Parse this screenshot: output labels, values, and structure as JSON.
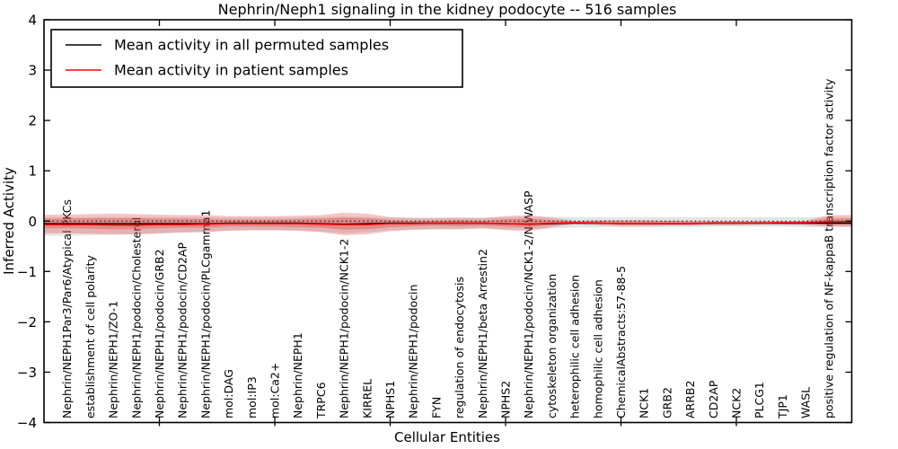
{
  "chart_data": {
    "type": "line",
    "title": "Nephrin/Neph1 signaling in the kidney podocyte -- 516 samples",
    "xlabel": "Cellular Entities",
    "ylabel": "Inferred Activity",
    "ylim": [
      -4,
      4
    ],
    "yticks": [
      -4,
      -3,
      -2,
      -1,
      0,
      1,
      2,
      3,
      4
    ],
    "xticks_major": [
      5,
      10,
      15,
      20,
      25,
      30
    ],
    "grid": false,
    "zero_reference_line": "dotted",
    "legend_position": "upper left",
    "categories": [
      "Nephrin/NEPH1Par3/Par6/Atypical PKCs",
      "establishment of cell polarity",
      "Nephrin/NEPH1/ZO-1",
      "Nephrin/NEPH1/podocin/Cholesterol",
      "Nephrin/NEPH1/podocin/GRB2",
      "Nephrin/NEPH1/podocin/CD2AP",
      "Nephrin/NEPH1/podocin/PLCgamma1",
      "mol:DAG",
      "mol:IP3",
      "mol:Ca2+",
      "Nephrin/NEPH1",
      "TRPC6",
      "Nephrin/NEPH1/podocin/NCK1-2",
      "KIRREL",
      "NPHS1",
      "Nephrin/NEPH1/podocin",
      "FYN",
      "regulation of endocytosis",
      "Nephrin/NEPH1/beta Arrestin2",
      "NPHS2",
      "Nephrin/NEPH1/podocin/NCK1-2/N-WASP",
      "cytoskeleton organization",
      "heterophilic cell adhesion",
      "homophilic cell adhesion",
      "ChemicalAbstracts:57-88-5",
      "NCK1",
      "GRB2",
      "ARRB2",
      "CD2AP",
      "NCK2",
      "PLCG1",
      "TJP1",
      "WASL",
      "positive regulation of NF-kappaB transcription factor activity"
    ],
    "series": [
      {
        "name": "Mean activity in all permuted samples",
        "color": "#000000",
        "values": [
          -0.05,
          -0.05,
          -0.05,
          -0.05,
          -0.05,
          -0.05,
          -0.05,
          -0.04,
          -0.04,
          -0.04,
          -0.04,
          -0.05,
          -0.06,
          -0.05,
          -0.04,
          -0.04,
          -0.04,
          -0.04,
          -0.04,
          -0.05,
          -0.06,
          -0.05,
          -0.04,
          -0.04,
          -0.05,
          -0.05,
          -0.05,
          -0.05,
          -0.04,
          -0.04,
          -0.04,
          -0.04,
          -0.04,
          -0.04
        ]
      },
      {
        "name": "Mean activity in patient samples",
        "color": "#ff0000",
        "values": [
          -0.07,
          -0.07,
          -0.08,
          -0.08,
          -0.07,
          -0.07,
          -0.06,
          -0.05,
          -0.05,
          -0.05,
          -0.05,
          -0.06,
          -0.07,
          -0.07,
          -0.05,
          -0.05,
          -0.04,
          -0.04,
          -0.04,
          -0.05,
          -0.06,
          -0.04,
          -0.03,
          -0.04,
          -0.05,
          -0.05,
          -0.05,
          -0.05,
          -0.04,
          -0.04,
          -0.04,
          -0.03,
          -0.03,
          -0.01
        ]
      }
    ],
    "bands": [
      {
        "name": "permuted-samples-spread",
        "color": "#888888",
        "opacity": 0.22,
        "hi": [
          0.08,
          0.08,
          0.08,
          0.08,
          0.08,
          0.08,
          0.08,
          0.07,
          0.07,
          0.07,
          0.07,
          0.08,
          0.09,
          0.08,
          0.07,
          0.07,
          0.07,
          0.07,
          0.07,
          0.08,
          0.08,
          0.09,
          0.08,
          0.08,
          0.08,
          0.08,
          0.08,
          0.08,
          0.08,
          0.08,
          0.08,
          0.08,
          0.08,
          0.08
        ],
        "lo": [
          -0.29,
          -0.28,
          -0.27,
          -0.26,
          -0.25,
          -0.23,
          -0.21,
          -0.19,
          -0.18,
          -0.18,
          -0.19,
          -0.21,
          -0.24,
          -0.22,
          -0.18,
          -0.17,
          -0.16,
          -0.16,
          -0.15,
          -0.16,
          -0.16,
          -0.15,
          -0.13,
          -0.12,
          -0.12,
          -0.12,
          -0.12,
          -0.12,
          -0.11,
          -0.11,
          -0.11,
          -0.11,
          -0.12,
          -0.12
        ]
      },
      {
        "name": "patient-samples-spread-outer",
        "color": "#dd3333",
        "opacity": 0.28,
        "hi": [
          0.13,
          0.14,
          0.15,
          0.14,
          0.13,
          0.12,
          0.12,
          0.1,
          0.1,
          0.1,
          0.11,
          0.12,
          0.17,
          0.15,
          0.08,
          0.06,
          0.06,
          0.07,
          0.06,
          0.1,
          0.12,
          0.07,
          0.01,
          0.02,
          0.02,
          0.02,
          0.01,
          0.01,
          0.0,
          0.0,
          0.0,
          0.0,
          0.01,
          0.12
        ],
        "lo": [
          -0.24,
          -0.25,
          -0.26,
          -0.26,
          -0.24,
          -0.22,
          -0.22,
          -0.19,
          -0.18,
          -0.18,
          -0.19,
          -0.22,
          -0.28,
          -0.26,
          -0.2,
          -0.17,
          -0.16,
          -0.16,
          -0.14,
          -0.18,
          -0.2,
          -0.12,
          -0.06,
          -0.08,
          -0.1,
          -0.1,
          -0.09,
          -0.09,
          -0.08,
          -0.08,
          -0.07,
          -0.07,
          -0.08,
          -0.11
        ]
      },
      {
        "name": "patient-samples-spread-inner",
        "color": "#dd3333",
        "opacity": 0.32,
        "hi": [
          0.05,
          0.06,
          0.06,
          0.06,
          0.05,
          0.05,
          0.04,
          0.03,
          0.03,
          0.03,
          0.04,
          0.05,
          0.07,
          0.06,
          0.02,
          0.01,
          0.01,
          0.02,
          0.01,
          0.04,
          0.05,
          0.02,
          -0.01,
          0.0,
          0.0,
          0.0,
          0.0,
          -0.01,
          -0.01,
          -0.01,
          -0.01,
          -0.01,
          -0.01,
          0.05
        ],
        "lo": [
          -0.14,
          -0.15,
          -0.16,
          -0.16,
          -0.14,
          -0.13,
          -0.13,
          -0.11,
          -0.11,
          -0.11,
          -0.12,
          -0.13,
          -0.17,
          -0.16,
          -0.12,
          -0.1,
          -0.09,
          -0.1,
          -0.09,
          -0.11,
          -0.12,
          -0.08,
          -0.04,
          -0.05,
          -0.06,
          -0.06,
          -0.06,
          -0.06,
          -0.05,
          -0.05,
          -0.05,
          -0.05,
          -0.05,
          -0.07
        ]
      }
    ]
  }
}
